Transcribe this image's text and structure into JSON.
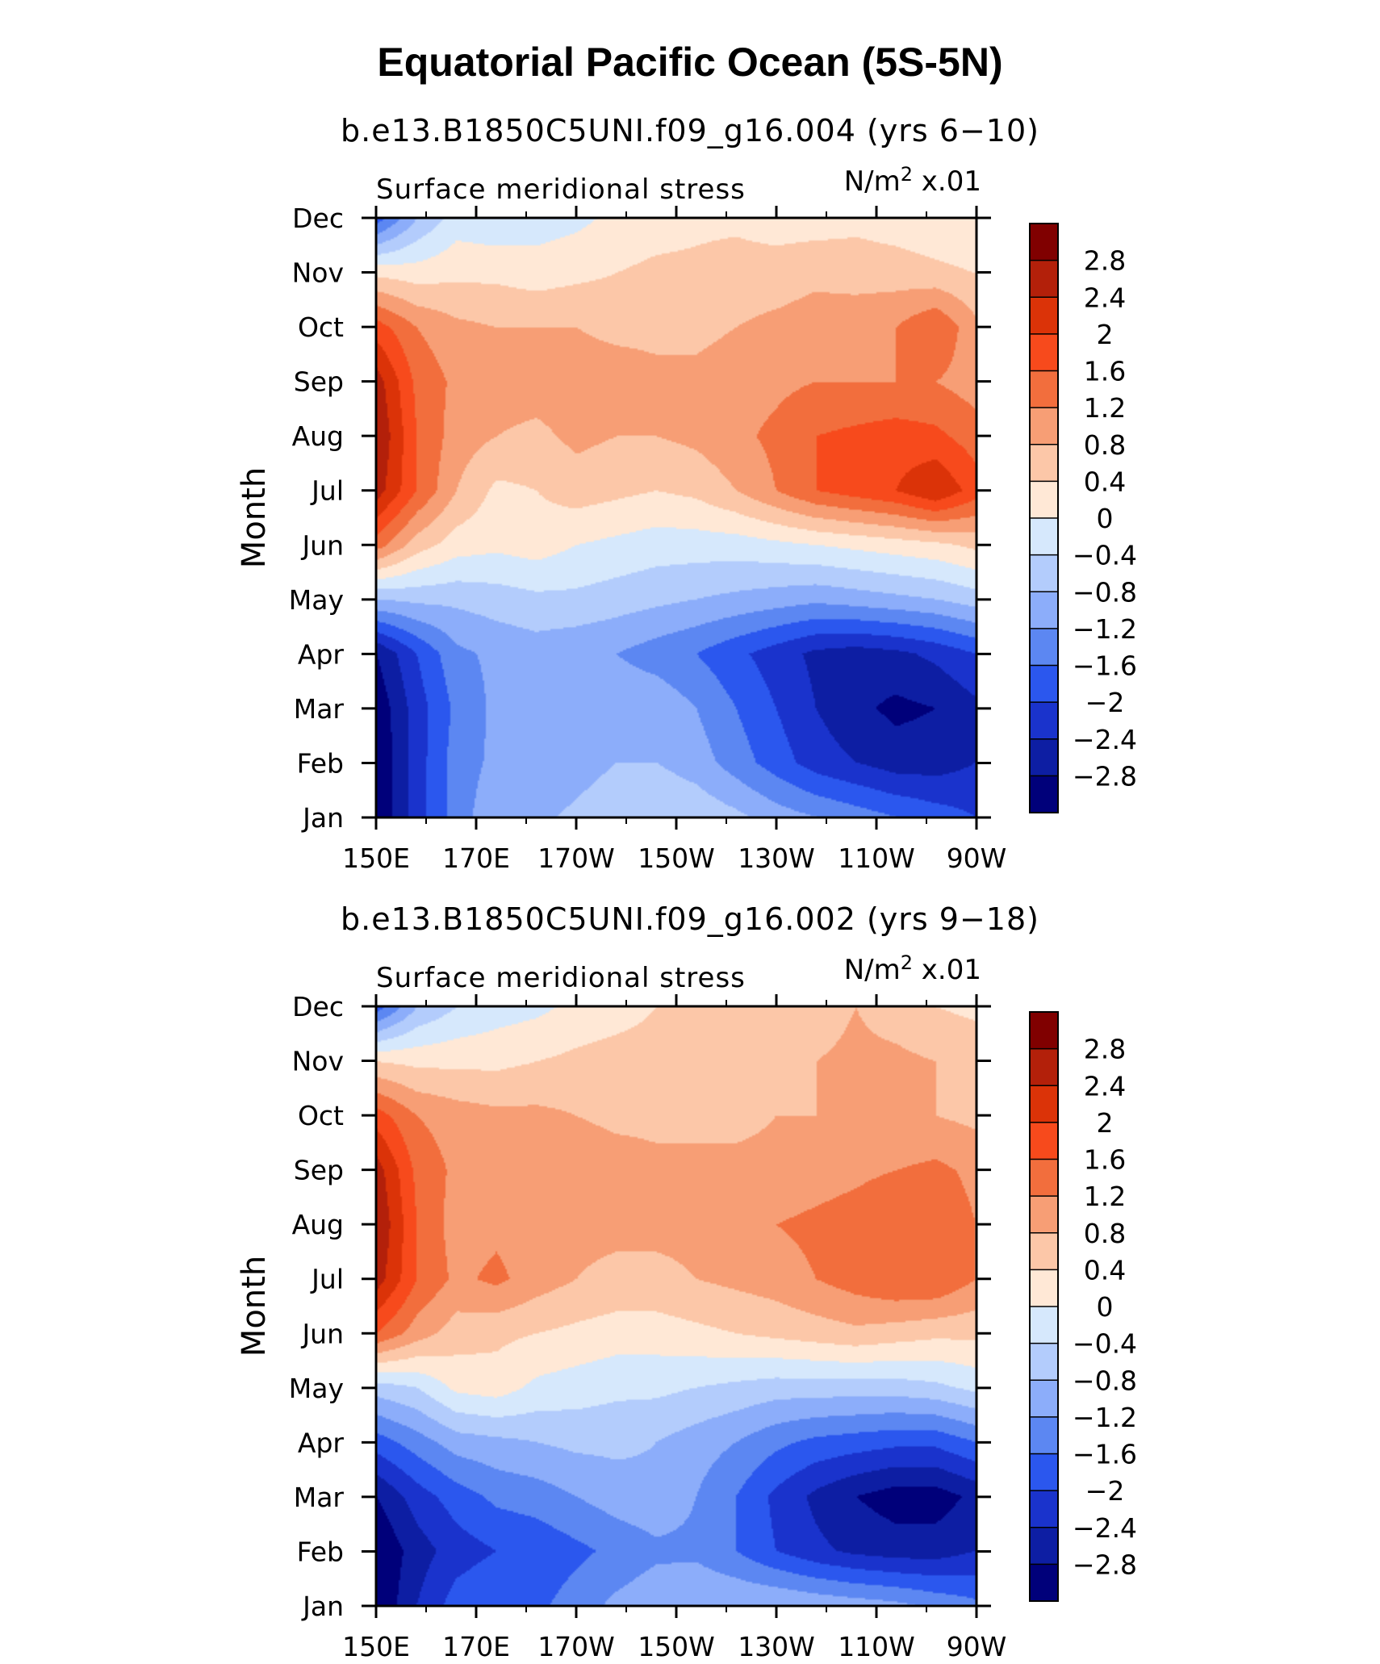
{
  "title": "Equatorial Pacific Ocean (5S-5N)",
  "panels": [
    {
      "run_title": "b.e13.B1850C5UNI.f09_g16.004 (yrs 6−10)"
    },
    {
      "run_title": "b.e13.B1850C5UNI.f09_g16.002 (yrs 9−18)"
    }
  ],
  "chart_data": [
    {
      "type": "heatmap",
      "title": "b.e13.B1850C5UNI.f09_g16.004 (yrs 6−10)",
      "left_label": "Surface meridional stress",
      "units_base": "N/m",
      "units_exp": "2",
      "units_scale": "x.01",
      "ylabel": "Month",
      "x_ticks": [
        "150E",
        "170E",
        "170W",
        "150W",
        "130W",
        "110W",
        "90W"
      ],
      "y_ticks": [
        "Jan",
        "Feb",
        "Mar",
        "Apr",
        "May",
        "Jun",
        "Jul",
        "Aug",
        "Sep",
        "Oct",
        "Nov",
        "Dec"
      ],
      "x_range": [
        150,
        270
      ],
      "values": [
        [
          -3.2,
          -2.2,
          -1.4,
          -0.9,
          -0.9,
          -0.7,
          -0.5,
          -0.4,
          -0.5,
          -0.7,
          -1.0,
          -1.2,
          -1.4,
          -1.6,
          -1.8,
          -2.0
        ],
        [
          -3.2,
          -2.2,
          -1.4,
          -1.1,
          -1.2,
          -1.0,
          -0.8,
          -0.8,
          -1.0,
          -1.4,
          -1.8,
          -2.2,
          -2.4,
          -2.6,
          -2.6,
          -2.4
        ],
        [
          -3.1,
          -2.2,
          -1.5,
          -1.1,
          -1.1,
          -1.0,
          -0.9,
          -0.9,
          -1.2,
          -1.6,
          -2.0,
          -2.4,
          -2.7,
          -2.9,
          -2.8,
          -2.5
        ],
        [
          -2.8,
          -2.0,
          -1.3,
          -1.1,
          -1.0,
          -1.1,
          -1.2,
          -1.4,
          -1.6,
          -1.9,
          -2.2,
          -2.5,
          -2.6,
          -2.5,
          -2.3,
          -2.0
        ],
        [
          -0.8,
          -0.7,
          -0.7,
          -0.6,
          -0.5,
          -0.5,
          -0.6,
          -0.7,
          -0.8,
          -0.9,
          -1.0,
          -1.1,
          -1.0,
          -0.9,
          -0.8,
          -0.6
        ],
        [
          1.4,
          0.6,
          0.2,
          0.1,
          0.2,
          0.0,
          -0.1,
          -0.2,
          -0.2,
          -0.2,
          -0.1,
          0.0,
          0.1,
          0.2,
          0.3,
          0.5
        ],
        [
          2.6,
          1.6,
          0.8,
          0.3,
          0.4,
          0.6,
          0.5,
          0.4,
          0.5,
          0.8,
          1.2,
          1.6,
          1.8,
          2.0,
          2.4,
          1.8
        ],
        [
          2.8,
          1.6,
          1.0,
          0.8,
          0.7,
          0.9,
          0.8,
          0.8,
          0.9,
          1.1,
          1.3,
          1.6,
          1.7,
          1.8,
          1.7,
          1.4
        ],
        [
          2.6,
          1.5,
          1.1,
          1.0,
          1.0,
          1.0,
          1.0,
          0.9,
          0.9,
          1.0,
          1.1,
          1.2,
          1.2,
          1.2,
          1.2,
          1.0
        ],
        [
          1.8,
          1.2,
          0.9,
          0.8,
          0.8,
          0.8,
          0.7,
          0.7,
          0.7,
          0.8,
          0.9,
          1.0,
          1.1,
          1.2,
          1.6,
          0.9
        ],
        [
          0.3,
          0.2,
          0.3,
          0.3,
          0.2,
          0.3,
          0.4,
          0.5,
          0.5,
          0.6,
          0.6,
          0.7,
          0.6,
          0.6,
          0.5,
          0.4
        ],
        [
          -1.8,
          -0.8,
          -0.2,
          -0.3,
          -0.2,
          -0.1,
          0.1,
          0.2,
          0.3,
          0.3,
          0.2,
          0.2,
          0.3,
          0.2,
          0.1,
          0.0
        ]
      ],
      "levels": [
        -2.8,
        -2.4,
        -2.0,
        -1.6,
        -1.2,
        -0.8,
        -0.4,
        0,
        0.4,
        0.8,
        1.2,
        1.6,
        2.0,
        2.4,
        2.8
      ]
    },
    {
      "type": "heatmap",
      "title": "b.e13.B1850C5UNI.f09_g16.002 (yrs 9−18)",
      "left_label": "Surface meridional stress",
      "units_base": "N/m",
      "units_exp": "2",
      "units_scale": "x.01",
      "ylabel": "Month",
      "x_ticks": [
        "150E",
        "170E",
        "170W",
        "150W",
        "130W",
        "110W",
        "90W"
      ],
      "y_ticks": [
        "Jan",
        "Feb",
        "Mar",
        "Apr",
        "May",
        "Jun",
        "Jul",
        "Aug",
        "Sep",
        "Oct",
        "Nov",
        "Dec"
      ],
      "x_range": [
        150,
        270
      ],
      "values": [
        [
          -3.2,
          -2.4,
          -1.8,
          -1.6,
          -1.7,
          -1.4,
          -1.1,
          -0.9,
          -0.8,
          -0.8,
          -0.8,
          -0.9,
          -1.0,
          -1.1,
          -1.3,
          -1.5
        ],
        [
          -3.2,
          -2.6,
          -2.2,
          -2.0,
          -1.9,
          -1.7,
          -1.5,
          -1.3,
          -1.3,
          -1.6,
          -2.0,
          -2.3,
          -2.5,
          -2.6,
          -2.6,
          -2.4
        ],
        [
          -2.8,
          -2.2,
          -1.8,
          -1.5,
          -1.4,
          -1.2,
          -1.0,
          -0.9,
          -1.2,
          -1.6,
          -2.1,
          -2.5,
          -2.8,
          -3.0,
          -3.0,
          -2.7
        ],
        [
          -1.8,
          -1.4,
          -1.0,
          -0.9,
          -0.8,
          -0.7,
          -0.7,
          -0.8,
          -1.0,
          -1.2,
          -1.5,
          -1.7,
          -1.8,
          -1.9,
          -1.9,
          -1.6
        ],
        [
          -0.6,
          -0.4,
          0.1,
          0.2,
          -0.1,
          -0.2,
          -0.3,
          -0.3,
          -0.4,
          -0.5,
          -0.6,
          -0.6,
          -0.6,
          -0.6,
          -0.5,
          -0.3
        ],
        [
          1.6,
          1.0,
          0.6,
          0.5,
          0.4,
          0.3,
          0.2,
          0.2,
          0.3,
          0.4,
          0.5,
          0.6,
          0.7,
          0.6,
          0.5,
          0.5
        ],
        [
          2.6,
          1.6,
          1.1,
          1.3,
          1.0,
          0.8,
          0.7,
          0.7,
          0.8,
          0.9,
          1.0,
          1.2,
          1.4,
          1.6,
          1.6,
          1.2
        ],
        [
          2.8,
          1.6,
          1.0,
          1.1,
          0.9,
          0.9,
          0.9,
          0.9,
          0.9,
          1.0,
          1.2,
          1.3,
          1.4,
          1.6,
          1.5,
          1.2
        ],
        [
          2.6,
          1.5,
          1.1,
          1.0,
          1.0,
          1.1,
          1.0,
          0.9,
          0.9,
          0.9,
          0.9,
          1.0,
          1.1,
          1.2,
          1.3,
          1.1
        ],
        [
          1.8,
          1.2,
          1.0,
          0.9,
          0.9,
          0.8,
          0.7,
          0.7,
          0.7,
          0.7,
          0.8,
          0.8,
          0.8,
          0.8,
          0.8,
          0.7
        ],
        [
          0.4,
          0.3,
          0.3,
          0.3,
          0.4,
          0.5,
          0.6,
          0.6,
          0.5,
          0.5,
          0.8,
          0.8,
          0.9,
          0.9,
          0.8,
          0.7
        ],
        [
          -1.8,
          -0.8,
          -0.4,
          -0.2,
          -0.1,
          0.1,
          0.2,
          0.4,
          0.5,
          0.6,
          0.6,
          0.6,
          0.8,
          0.6,
          0.4,
          0.3
        ]
      ],
      "levels": [
        -2.8,
        -2.4,
        -2.0,
        -1.6,
        -1.2,
        -0.8,
        -0.4,
        0,
        0.4,
        0.8,
        1.2,
        1.6,
        2.0,
        2.4,
        2.8
      ]
    }
  ],
  "colorbar": {
    "labels": [
      "2.8",
      "2.4",
      "2",
      "1.6",
      "1.2",
      "0.8",
      "0.4",
      "0",
      "−0.4",
      "−0.8",
      "−1.2",
      "−1.6",
      "−2",
      "−2.4",
      "−2.8"
    ],
    "colors": [
      "#800000",
      "#b3200a",
      "#db3308",
      "#f74a1c",
      "#f26e3d",
      "#f79e75",
      "#fcc7a8",
      "#ffe8d6",
      "#d6e8fc",
      "#b3ccfc",
      "#8cadfa",
      "#5c87f2",
      "#2b57ee",
      "#1a33cc",
      "#0d1ea3",
      "#00007a"
    ]
  }
}
